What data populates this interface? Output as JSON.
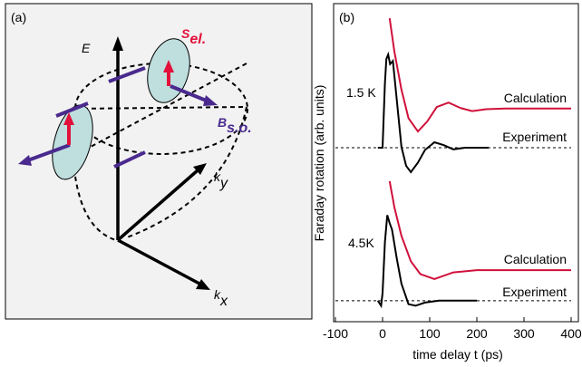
{
  "diagram": {
    "panel_label": "(a)",
    "energy_axis": "E",
    "spin": {
      "symbol": "S",
      "subscript": "el."
    },
    "field": {
      "symbol": "B",
      "subscript": "s.o."
    },
    "ky": {
      "symbol": "k",
      "subscript": "y"
    },
    "kx": {
      "symbol": "k",
      "subscript": "x"
    }
  },
  "chart_data": {
    "type": "line",
    "panel_label": "(b)",
    "x_label": "time delay t (ps)",
    "y_label": "Faraday rotation (arb. units)",
    "xlim": [
      -100,
      400
    ],
    "xticks": [
      -100,
      0,
      100,
      200,
      300,
      400
    ],
    "ylim": [
      0,
      10
    ],
    "annotations": [
      "1.5 K",
      "4.5K"
    ],
    "baselines": [
      5.47,
      0.66
    ],
    "series": [
      {
        "name": "Calculation",
        "color": "#d0103a",
        "x": [
          15,
          25,
          40,
          55,
          75,
          95,
          115,
          140,
          165,
          190,
          220,
          260,
          300,
          400
        ],
        "values": [
          9.54,
          8.5,
          7.3,
          6.4,
          5.98,
          6.3,
          6.75,
          6.89,
          6.72,
          6.62,
          6.68,
          6.7,
          6.7,
          6.7
        ]
      },
      {
        "name": "Experiment",
        "color": "#000000",
        "x": [
          -10,
          0,
          5,
          8,
          12,
          16,
          22,
          30,
          40,
          50,
          60,
          75,
          90,
          110,
          130,
          150,
          175,
          200,
          225
        ],
        "values": [
          5.47,
          5.47,
          7.5,
          8.26,
          8.4,
          8.1,
          8.2,
          7.0,
          5.5,
          4.9,
          4.7,
          5.0,
          5.4,
          5.64,
          5.55,
          5.42,
          5.47,
          5.47,
          5.47
        ]
      },
      {
        "name": "Calculation",
        "color": "#d0103a",
        "x": [
          15,
          25,
          40,
          60,
          80,
          110,
          150,
          200,
          300,
          400
        ],
        "values": [
          4.42,
          3.6,
          2.7,
          1.9,
          1.5,
          1.34,
          1.55,
          1.62,
          1.62,
          1.62
        ]
      },
      {
        "name": "Experiment",
        "color": "#000000",
        "x": [
          -10,
          -3,
          0,
          5,
          10,
          15,
          20,
          30,
          40,
          55,
          70,
          90,
          120,
          200
        ],
        "values": [
          0.66,
          0.5,
          0.9,
          2.5,
          3.35,
          3.1,
          2.9,
          2.0,
          1.2,
          0.55,
          0.5,
          0.6,
          0.66,
          0.66
        ]
      }
    ]
  }
}
